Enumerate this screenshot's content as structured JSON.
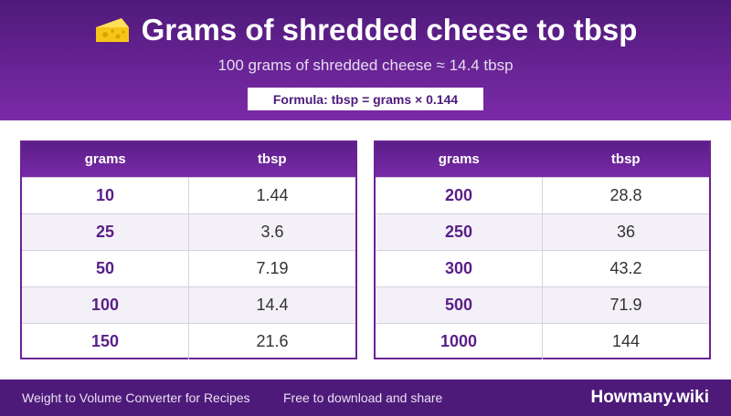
{
  "header": {
    "title": "Grams of shredded cheese to tbsp",
    "icon": "cheese-icon",
    "subtitle": "100 grams of shredded cheese ≈ 14.4 tbsp",
    "formula": "Formula: tbsp = grams × 0.144"
  },
  "tables": {
    "left": {
      "col1": "grams",
      "col2": "tbsp",
      "rows": [
        {
          "grams": "10",
          "tbsp": "1.44"
        },
        {
          "grams": "25",
          "tbsp": "3.6"
        },
        {
          "grams": "50",
          "tbsp": "7.19"
        },
        {
          "grams": "100",
          "tbsp": "14.4"
        },
        {
          "grams": "150",
          "tbsp": "21.6"
        }
      ]
    },
    "right": {
      "col1": "grams",
      "col2": "tbsp",
      "rows": [
        {
          "grams": "200",
          "tbsp": "28.8"
        },
        {
          "grams": "250",
          "tbsp": "36"
        },
        {
          "grams": "300",
          "tbsp": "43.2"
        },
        {
          "grams": "500",
          "tbsp": "71.9"
        },
        {
          "grams": "1000",
          "tbsp": "144"
        }
      ]
    }
  },
  "footer": {
    "left": "Weight to Volume Converter for Recipes",
    "mid": "Free to download and share",
    "brand": "Howmany.wiki"
  },
  "colors": {
    "primary": "#6a2496",
    "dark": "#4e1a7a",
    "cheese": "#f5c518"
  }
}
